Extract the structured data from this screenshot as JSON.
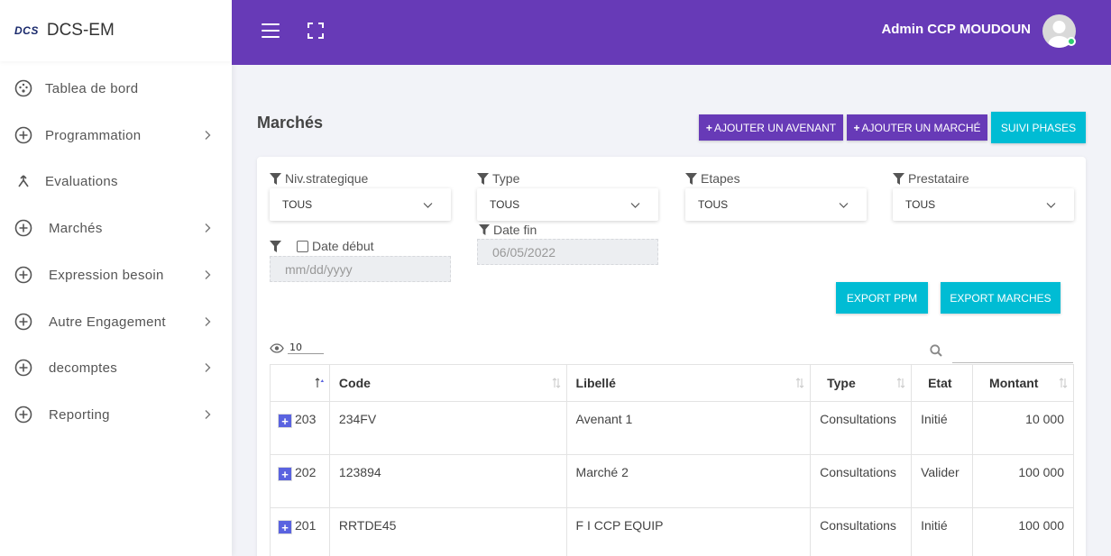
{
  "sidebar": {
    "logo": "DCS",
    "app_name": "DCS-EM",
    "items": [
      {
        "label": "Tablea de bord",
        "icon": "dashboard-icon"
      },
      {
        "label": "Programmation",
        "icon": "plus-circle-icon"
      },
      {
        "label": "Evaluations",
        "icon": "evaluation-icon"
      },
      {
        "label": "Marchés",
        "icon": "plus-circle-icon"
      },
      {
        "label": "Expression besoin",
        "icon": "plus-circle-icon"
      },
      {
        "label": "Autre Engagement",
        "icon": "plus-circle-icon"
      },
      {
        "label": "decomptes",
        "icon": "plus-circle-icon"
      },
      {
        "label": "Reporting",
        "icon": "plus-circle-icon"
      }
    ]
  },
  "header": {
    "user_name": "Admin CCP MOUDOUN"
  },
  "page": {
    "title": "Marchés",
    "btn_avenant": "AJOUTER UN AVENANT",
    "btn_marche": "AJOUTER UN MARCHÉ",
    "btn_phases": "SUIVI PHASES"
  },
  "filters": {
    "niv_label": "Niv.strategique",
    "niv_value": "TOUS",
    "type_label": "Type",
    "type_value": "TOUS",
    "etapes_label": "Etapes",
    "etapes_value": "TOUS",
    "prestataire_label": "Prestataire",
    "prestataire_value": "TOUS",
    "date_debut_label": "Date début",
    "date_debut_placeholder": "mm/dd/yyyy",
    "date_fin_label": "Date fin",
    "date_fin_value": "06/05/2022"
  },
  "exports": {
    "ppm": "EXPORT PPM",
    "marches": "EXPORT MARCHES"
  },
  "table": {
    "page_size": "10",
    "columns": [
      "",
      "Code",
      "Libellé",
      "Type",
      "Etat",
      "Montant"
    ],
    "rows": [
      {
        "id": "203",
        "code": "234FV",
        "libelle": "Avenant 1",
        "type": "Consultations",
        "etat": "Initié",
        "montant": "10 000"
      },
      {
        "id": "202",
        "code": "123894",
        "libelle": "Marché 2",
        "type": "Consultations",
        "etat": "Valider",
        "montant": "100 000"
      },
      {
        "id": "201",
        "code": "RRTDE45",
        "libelle": "F I CCP EQUIP",
        "type": "Consultations",
        "etat": "Initié",
        "montant": "100 000"
      }
    ]
  },
  "colors": {
    "primary": "#673ab7",
    "accent": "#00bcd4",
    "expand": "#5a63e0"
  }
}
